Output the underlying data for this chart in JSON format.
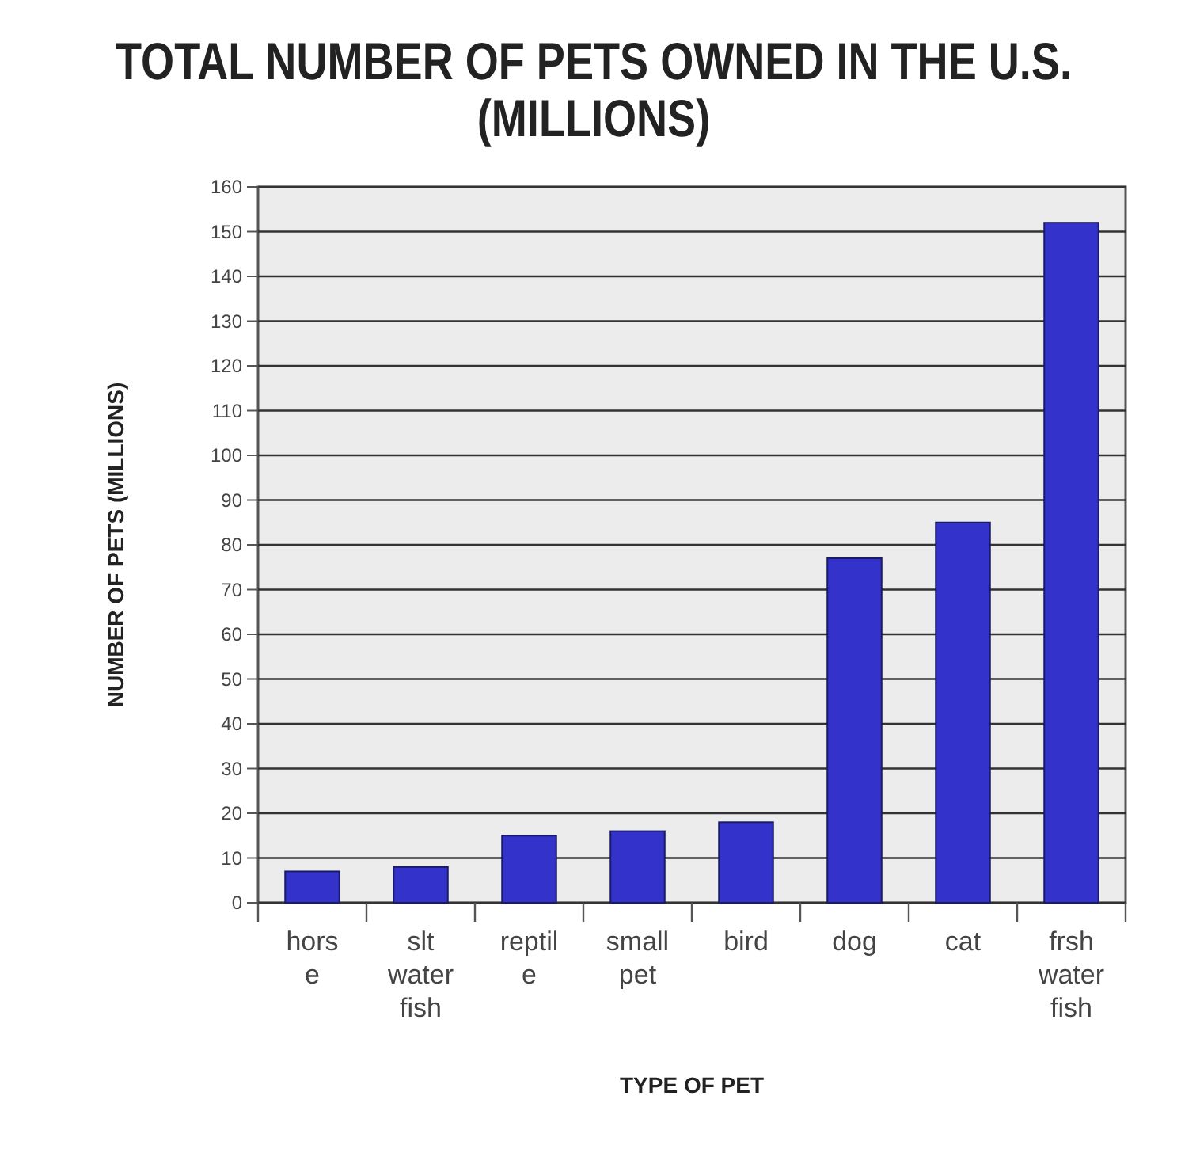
{
  "chart_data": {
    "type": "bar",
    "title": "TOTAL NUMBER OF PETS OWNED IN THE U.S.\n(MILLIONS)",
    "xlabel": "TYPE OF PET",
    "ylabel": "NUMBER OF PETS (MILLIONS)",
    "categories": [
      "hors\ne",
      "slt\nwater\nfish",
      "reptil\ne",
      "small\npet",
      "bird",
      "dog",
      "cat",
      "frsh\nwater\nfish"
    ],
    "values": [
      7,
      8,
      15,
      16,
      18,
      77,
      85,
      152
    ],
    "color": "#3333cc",
    "ylim": [
      0,
      160
    ],
    "yticks": [
      0,
      10,
      20,
      30,
      40,
      50,
      60,
      70,
      80,
      90,
      100,
      110,
      120,
      130,
      140,
      150,
      160
    ],
    "grid": "y"
  }
}
